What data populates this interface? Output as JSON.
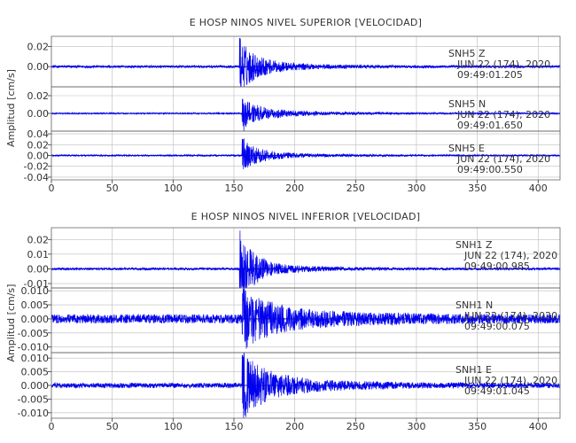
{
  "chart_data": [
    {
      "type": "line",
      "title": "E HOSP NINOS NIVEL SUPERIOR [VELOCIDAD]",
      "ylabel": "Amplitud [cm/s]",
      "xlabel": "",
      "xlim": [
        0,
        418
      ],
      "x_ticks": [
        0,
        50,
        100,
        150,
        200,
        250,
        300,
        350,
        400
      ],
      "grid": true,
      "line_color": "#0000ee",
      "traces": [
        {
          "station": "SNH5   Z",
          "date": "JUN 22 (174), 2020",
          "time": "09:49:01.205",
          "ylim": [
            -0.02,
            0.03
          ],
          "y_ticks": [
            0.02,
            0.0
          ],
          "y_tick_labels": [
            "0.02",
            "0.00"
          ],
          "onset": 155,
          "peak": 0.028,
          "noise": 0.0012,
          "decay": 12,
          "coda": 0.006
        },
        {
          "station": "SNH5   N",
          "date": "JUN 22 (174), 2020",
          "time": "09:49:01.650",
          "ylim": [
            -0.02,
            0.03
          ],
          "y_ticks": [
            0.02,
            0.0
          ],
          "y_tick_labels": [
            "0.02",
            "0.00"
          ],
          "onset": 157,
          "peak": 0.016,
          "noise": 0.0008,
          "decay": 14,
          "coda": 0.005
        },
        {
          "station": "SNH5   E",
          "date": "JUN 22 (174), 2020",
          "time": "09:49:00.550",
          "ylim": [
            -0.045,
            0.045
          ],
          "y_ticks": [
            0.04,
            0.02,
            0.0,
            -0.02,
            -0.04
          ],
          "y_tick_labels": [
            "0.04",
            "0.02",
            "0.00",
            "-0.02",
            "-0.04"
          ],
          "onset": 157,
          "peak": 0.03,
          "noise": 0.0015,
          "decay": 13,
          "coda": 0.006
        }
      ]
    },
    {
      "type": "line",
      "title": "E HOSP NINOS NIVEL INFERIOR [VELOCIDAD]",
      "ylabel": "Amplitud [cm/s]",
      "xlabel": "",
      "xlim": [
        0,
        418
      ],
      "x_ticks": [
        0,
        50,
        100,
        150,
        200,
        250,
        300,
        350,
        400
      ],
      "grid": true,
      "line_color": "#0000ee",
      "traces": [
        {
          "station": "SNH1   Z",
          "date": "JUN 22 (174), 2020",
          "time": "09:49:00.985",
          "ylim": [
            -0.013,
            0.028
          ],
          "y_ticks": [
            0.02,
            0.01,
            0.0,
            -0.01
          ],
          "y_tick_labels": [
            "0.02",
            "0.01",
            "0.00",
            "-0.01"
          ],
          "onset": 155,
          "peak": 0.026,
          "noise": 0.0008,
          "decay": 12,
          "coda": 0.004
        },
        {
          "station": "SNH1   N",
          "date": "JUN 22 (174), 2020",
          "time": "09:49:00.075",
          "ylim": [
            -0.012,
            0.011
          ],
          "y_ticks": [
            0.01,
            0.005,
            0.0,
            -0.005,
            -0.01
          ],
          "y_tick_labels": [
            "0.010",
            "0.005",
            "0.000",
            "-0.005",
            "-0.010"
          ],
          "onset": 157,
          "peak": 0.009,
          "noise": 0.0016,
          "decay": 18,
          "coda": 0.004
        },
        {
          "station": "SNH1   E",
          "date": "JUN 22 (174), 2020",
          "time": "09:49:01.045",
          "ylim": [
            -0.012,
            0.012
          ],
          "y_ticks": [
            0.01,
            0.005,
            0.0,
            -0.005,
            -0.01
          ],
          "y_tick_labels": [
            "0.010",
            "0.005",
            "0.000",
            "-0.005",
            "-0.010"
          ],
          "onset": 157,
          "peak": 0.011,
          "noise": 0.0009,
          "decay": 16,
          "coda": 0.004
        }
      ]
    }
  ]
}
